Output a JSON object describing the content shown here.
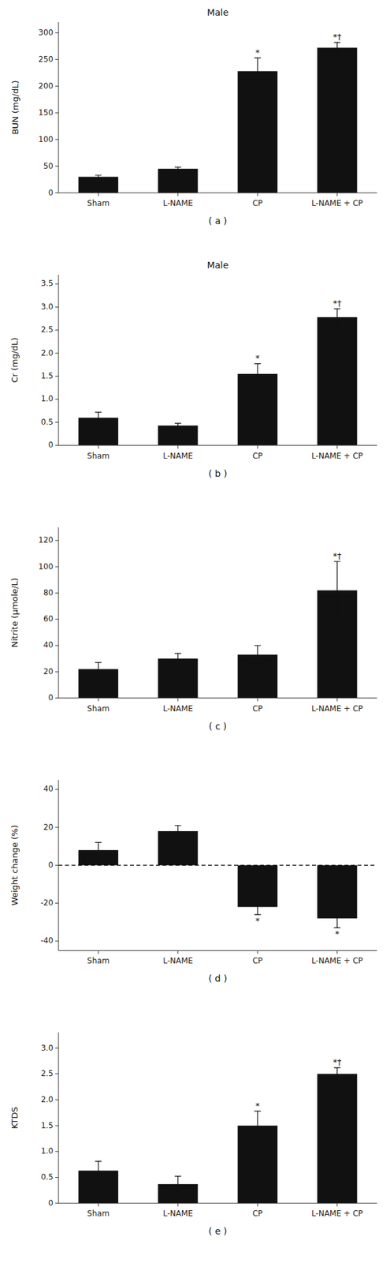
{
  "chart_data": [
    {
      "type": "bar",
      "title": "Male",
      "ylabel": "BUN (mg/dL)",
      "label": "( a )",
      "categories": [
        "Sham",
        "L-NAME",
        "CP",
        "L-NAME + CP"
      ],
      "values": [
        30,
        45,
        228,
        272
      ],
      "errors": [
        3,
        3,
        25,
        10
      ],
      "annotations": [
        null,
        null,
        "*",
        "*†"
      ],
      "color": "#111111",
      "error_color": "#111111",
      "ylim": [
        0,
        320
      ],
      "yticks": [
        0,
        50,
        100,
        150,
        200,
        250,
        300
      ],
      "grid": false
    },
    {
      "type": "bar",
      "title": "Male",
      "ylabel": "Cr (mg/dL)",
      "label": "( b )",
      "categories": [
        "Sham",
        "L-NAME",
        "CP",
        "L-NAME + CP"
      ],
      "values": [
        0.6,
        0.43,
        1.55,
        2.78
      ],
      "errors": [
        0.12,
        0.05,
        0.22,
        0.18
      ],
      "annotations": [
        null,
        null,
        "*",
        "*†"
      ],
      "color": "#111111",
      "error_color": "#111111",
      "ylim": [
        0,
        3.7
      ],
      "yticks": [
        0,
        0.5,
        {
          "value": 1.0,
          "label": "1.0"
        },
        1.5,
        {
          "value": 2.0,
          "label": "2.0"
        },
        2.5,
        {
          "value": 3.0,
          "label": "3.0"
        },
        3.5
      ],
      "grid": false
    },
    {
      "type": "bar",
      "ylabel": "Nitrite (μmole/L)",
      "label": "( c )",
      "categories": [
        "Sham",
        "L-NAME",
        "CP",
        "L-NAME + CP"
      ],
      "values": [
        22,
        30,
        33,
        82
      ],
      "errors": [
        5,
        4,
        7,
        22
      ],
      "annotations": [
        null,
        null,
        null,
        "*†"
      ],
      "color": "#111111",
      "error_color": "#111111",
      "ylim": [
        0,
        130
      ],
      "yticks": [
        0,
        20,
        40,
        60,
        80,
        100,
        120
      ],
      "grid": false
    },
    {
      "type": "bar",
      "ylabel": "Weight change (%)",
      "label": "( d )",
      "categories": [
        "Sham",
        "L-NAME",
        "CP",
        "L-NAME + CP"
      ],
      "values": [
        8,
        18,
        -22,
        -28
      ],
      "errors": [
        4,
        3,
        4,
        5
      ],
      "annotations": [
        null,
        null,
        "*",
        "*"
      ],
      "color": "#111111",
      "error_color": "#111111",
      "hline": 0,
      "ylim": [
        -45,
        45
      ],
      "yticks": [
        -40,
        -20,
        0,
        20,
        40
      ],
      "grid": false
    },
    {
      "type": "bar",
      "ylabel": "KTDS",
      "label": "( e )",
      "categories": [
        "Sham",
        "L-NAME",
        "CP",
        "L-NAME + CP"
      ],
      "values": [
        0.63,
        0.37,
        1.5,
        2.5
      ],
      "errors": [
        0.18,
        0.15,
        0.28,
        0.12
      ],
      "annotations": [
        null,
        null,
        "*",
        "*†"
      ],
      "color": "#111111",
      "error_color": "#111111",
      "ylim": [
        0,
        3.3
      ],
      "yticks": [
        0,
        0.5,
        {
          "value": 1.0,
          "label": "1.0"
        },
        1.5,
        {
          "value": 2.0,
          "label": "2.0"
        },
        2.5,
        {
          "value": 3.0,
          "label": "3.0"
        }
      ],
      "grid": false
    }
  ]
}
